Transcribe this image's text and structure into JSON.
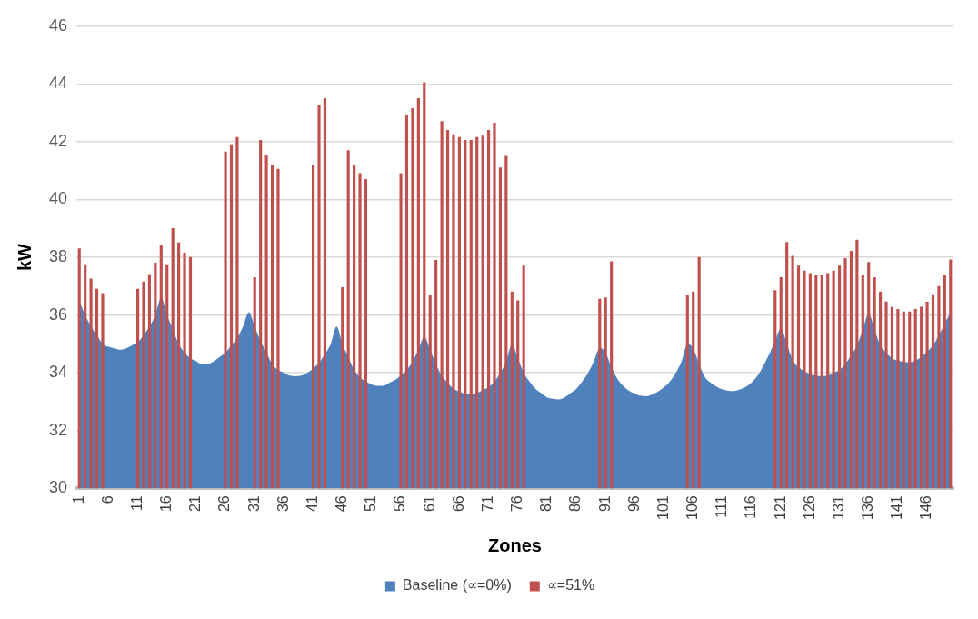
{
  "chart_data": {
    "type": "bar",
    "xlabel": "Zones",
    "ylabel": "kW",
    "ylim": [
      30,
      46
    ],
    "yticks": [
      30,
      32,
      34,
      36,
      38,
      40,
      42,
      44,
      46
    ],
    "grid": "y",
    "legend": "bottom",
    "categories": [
      "1",
      null,
      null,
      null,
      null,
      "6",
      null,
      null,
      null,
      null,
      "11",
      null,
      null,
      null,
      null,
      "16",
      null,
      null,
      null,
      null,
      "21",
      null,
      null,
      null,
      null,
      "26",
      null,
      null,
      null,
      null,
      "31",
      null,
      null,
      null,
      null,
      "36",
      null,
      null,
      null,
      null,
      "41",
      null,
      null,
      null,
      null,
      "46",
      null,
      null,
      null,
      null,
      "51",
      null,
      null,
      null,
      null,
      "56",
      null,
      null,
      null,
      null,
      "61",
      null,
      null,
      null,
      null,
      "66",
      null,
      null,
      null,
      null,
      "71",
      null,
      null,
      null,
      null,
      "76",
      null,
      null,
      null,
      null,
      "81",
      null,
      null,
      null,
      null,
      "86",
      null,
      null,
      null,
      null,
      "91",
      null,
      null,
      null,
      null,
      "96",
      null,
      null,
      null,
      null,
      "101",
      null,
      null,
      null,
      null,
      "106",
      null,
      null,
      null,
      null,
      "111",
      null,
      null,
      null,
      null,
      "116",
      null,
      null,
      null,
      null,
      "121",
      null,
      null,
      null,
      null,
      "126",
      null,
      null,
      null,
      null,
      "131",
      null,
      null,
      null,
      null,
      "136",
      null,
      null,
      null,
      null,
      "141",
      null,
      null,
      null,
      null,
      "146",
      null,
      null,
      null,
      null
    ],
    "series": [
      {
        "name": "Baseline (∝=0%)",
        "type": "area",
        "color": "#4f81bd",
        "values": [
          36.5,
          36.0,
          35.6,
          35.3,
          35.0,
          34.9,
          34.85,
          34.8,
          34.85,
          34.95,
          35.05,
          35.3,
          35.6,
          36.0,
          36.6,
          36.0,
          35.5,
          35.0,
          34.7,
          34.5,
          34.4,
          34.3,
          34.3,
          34.4,
          34.55,
          34.7,
          34.95,
          35.2,
          35.6,
          36.1,
          35.6,
          35.1,
          34.7,
          34.3,
          34.1,
          34.0,
          33.9,
          33.88,
          33.9,
          34.0,
          34.15,
          34.35,
          34.65,
          35.0,
          35.6,
          35.0,
          34.55,
          34.1,
          33.85,
          33.7,
          33.6,
          33.55,
          33.55,
          33.65,
          33.75,
          33.9,
          34.1,
          34.4,
          34.8,
          35.25,
          34.8,
          34.3,
          33.9,
          33.65,
          33.45,
          33.35,
          33.28,
          33.26,
          33.3,
          33.4,
          33.5,
          33.7,
          34.0,
          34.4,
          35.0,
          34.5,
          34.0,
          33.7,
          33.45,
          33.3,
          33.15,
          33.1,
          33.08,
          33.15,
          33.3,
          33.45,
          33.7,
          34.0,
          34.4,
          34.86,
          34.7,
          34.2,
          33.8,
          33.55,
          33.38,
          33.28,
          33.2,
          33.19,
          33.25,
          33.35,
          33.5,
          33.7,
          34.0,
          34.4,
          35.0,
          34.85,
          34.3,
          33.85,
          33.65,
          33.52,
          33.42,
          33.38,
          33.37,
          33.42,
          33.52,
          33.67,
          33.9,
          34.25,
          34.65,
          35.1,
          35.55,
          35.0,
          34.45,
          34.2,
          34.05,
          33.95,
          33.9,
          33.88,
          33.9,
          34.0,
          34.1,
          34.3,
          34.6,
          34.95,
          35.5,
          36.05,
          35.5,
          34.95,
          34.7,
          34.5,
          34.42,
          34.38,
          34.36,
          34.42,
          34.55,
          34.74,
          34.95,
          35.3,
          35.7,
          36.1
        ]
      },
      {
        "name": "∝=51%",
        "type": "bar",
        "color": "#c0504d",
        "values": [
          38.3,
          37.75,
          37.25,
          36.9,
          36.75,
          null,
          null,
          null,
          null,
          null,
          36.9,
          37.15,
          37.4,
          37.8,
          38.4,
          37.75,
          39.0,
          38.5,
          38.15,
          38.0,
          null,
          null,
          null,
          null,
          null,
          41.65,
          41.9,
          42.15,
          null,
          null,
          37.3,
          42.05,
          41.55,
          41.2,
          41.05,
          null,
          null,
          null,
          null,
          null,
          41.2,
          43.25,
          43.5,
          null,
          null,
          36.95,
          41.7,
          41.2,
          40.9,
          40.7,
          null,
          null,
          null,
          null,
          null,
          40.9,
          42.9,
          43.15,
          43.5,
          44.05,
          36.7,
          37.9,
          42.7,
          42.4,
          42.25,
          42.15,
          42.05,
          42.05,
          42.15,
          42.2,
          42.4,
          42.65,
          41.1,
          41.5,
          36.8,
          36.5,
          37.7,
          null,
          null,
          null,
          null,
          null,
          null,
          null,
          null,
          null,
          null,
          null,
          null,
          36.55,
          36.6,
          37.85,
          null,
          null,
          null,
          null,
          null,
          null,
          null,
          null,
          null,
          null,
          null,
          null,
          36.7,
          36.8,
          38.0,
          null,
          null,
          null,
          null,
          null,
          null,
          null,
          null,
          null,
          null,
          null,
          null,
          36.85,
          37.3,
          38.52,
          38.04,
          37.7,
          37.53,
          37.44,
          37.37,
          37.37,
          37.44,
          37.53,
          37.7,
          37.96,
          38.21,
          38.6,
          37.38,
          37.83,
          37.3,
          36.8,
          36.46,
          36.28,
          36.2,
          36.11,
          36.11,
          36.2,
          36.28,
          36.45,
          36.71,
          36.99,
          37.38,
          37.91
        ]
      }
    ]
  }
}
